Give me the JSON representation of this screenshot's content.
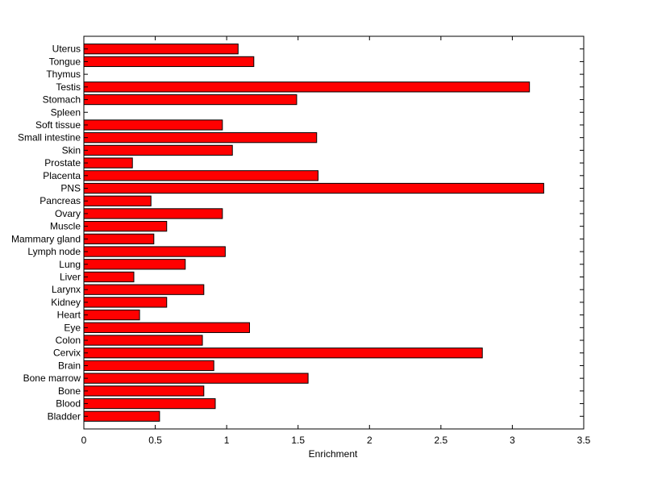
{
  "chart_data": {
    "type": "bar",
    "orientation": "horizontal",
    "title": "",
    "xlabel": "Enrichment",
    "ylabel": "",
    "xlim": [
      0,
      3.5
    ],
    "xticks": [
      0,
      0.5,
      1,
      1.5,
      2,
      2.5,
      3,
      3.5
    ],
    "xtick_labels": [
      "0",
      "0.5",
      "1",
      "1.5",
      "2",
      "2.5",
      "3",
      "3.5"
    ],
    "grid": false,
    "legend": false,
    "bar_color": "#ff0000",
    "edge_color": "#000000",
    "categories": [
      "Bladder",
      "Blood",
      "Bone",
      "Bone marrow",
      "Brain",
      "Cervix",
      "Colon",
      "Eye",
      "Heart",
      "Kidney",
      "Larynx",
      "Liver",
      "Lung",
      "Lymph node",
      "Mammary gland",
      "Muscle",
      "Ovary",
      "Pancreas",
      "PNS",
      "Placenta",
      "Prostate",
      "Skin",
      "Small intestine",
      "Soft tissue",
      "Spleen",
      "Stomach",
      "Testis",
      "Thymus",
      "Tongue",
      "Uterus"
    ],
    "values": [
      0.53,
      0.92,
      0.84,
      1.57,
      0.91,
      2.79,
      0.83,
      1.16,
      0.39,
      0.58,
      0.84,
      0.35,
      0.71,
      0.99,
      0.49,
      0.58,
      0.97,
      0.47,
      3.22,
      1.64,
      0.34,
      1.04,
      1.63,
      0.97,
      0.0,
      1.49,
      3.12,
      0.0,
      1.19,
      1.08
    ]
  }
}
